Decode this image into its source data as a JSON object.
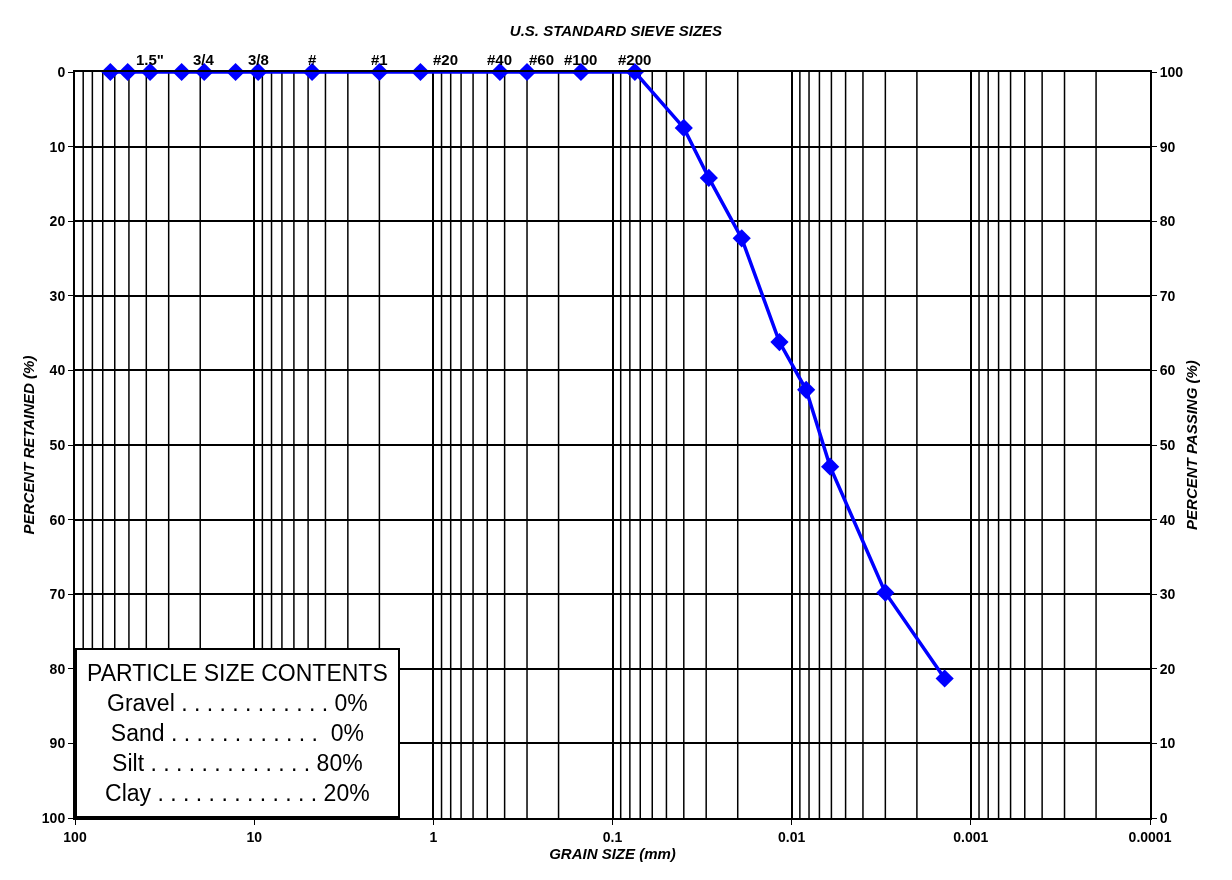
{
  "chart_data": {
    "type": "line",
    "title": "U.S. STANDARD SIEVE SIZES",
    "xlabel": "GRAIN SIZE (mm)",
    "ylabel": "PERCENT RETAINED (%)",
    "y2label": "PERCENT PASSING (%)",
    "log": "x",
    "grid": true,
    "marker": "diamond",
    "line_style": "solid",
    "xlim": [
      100,
      0.0001
    ],
    "xticks": [
      100,
      10,
      1,
      0.1,
      0.01,
      0.001,
      0.0001
    ],
    "ylim": [
      100,
      0
    ],
    "yticks": [
      0,
      10,
      20,
      30,
      40,
      50,
      60,
      70,
      80,
      90,
      100
    ],
    "y2lim": [
      0,
      100
    ],
    "y2ticks": [
      0,
      10,
      20,
      30,
      40,
      50,
      60,
      70,
      80,
      90,
      100
    ],
    "series": [
      {
        "color": "#0000ff",
        "axis": "y2",
        "x": [
          63.5,
          50.8,
          38.1,
          25.4,
          19.0,
          12.7,
          9.5,
          4.75,
          2.0,
          1.18,
          0.425,
          0.3,
          0.15,
          0.075,
          0.04,
          0.029,
          0.019,
          0.0117,
          0.0083,
          0.0061,
          0.003,
          0.0014
        ],
        "values": [
          100,
          100,
          100,
          100,
          100,
          100,
          100,
          100,
          100,
          100,
          100,
          100,
          100,
          100,
          92.5,
          85.8,
          77.7,
          63.8,
          57.4,
          47.1,
          30.2,
          18.7
        ]
      }
    ],
    "annotations": [
      {
        "text": "1.5\"",
        "x": 38.1,
        "y": 0
      },
      {
        "text": "3/4",
        "x": 19.0,
        "y": 0
      },
      {
        "text": "3/8",
        "x": 9.5,
        "y": 0
      },
      {
        "text": "#",
        "x": 4.75,
        "y": 0
      },
      {
        "text": "#1",
        "x": 2.0,
        "y": 0
      },
      {
        "text": "#20",
        "x": 0.85,
        "y": 0
      },
      {
        "text": "#40",
        "x": 0.425,
        "y": 0
      },
      {
        "text": "#60",
        "x": 0.25,
        "y": 0
      },
      {
        "text": "#100",
        "x": 0.15,
        "y": 0
      },
      {
        "text": "#200",
        "x": 0.075,
        "y": 0
      },
      "PARTICLE SIZE CONTENTS",
      "Gravel . . . . . . . . . . . . 0%",
      "Sand . . . . . . . . . . . .  0%",
      "Silt . . . . . . . . . . . . . 80%",
      "Clay . . . . . . . . . . . . . 20%"
    ]
  }
}
